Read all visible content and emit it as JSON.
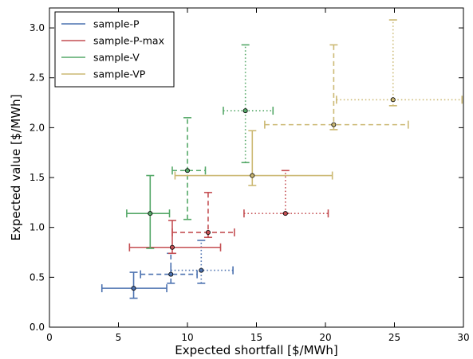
{
  "chart_data": {
    "type": "scatter",
    "xlabel": "Expected shortfall [$/MWh]",
    "ylabel": "Expected value [$/MWh]",
    "xlim": [
      0,
      30
    ],
    "ylim": [
      0.0,
      3.2
    ],
    "x_ticks": [
      "0",
      "5",
      "10",
      "15",
      "20",
      "25",
      "30"
    ],
    "y_ticks": [
      "0.0",
      "0.5",
      "1.0",
      "1.5",
      "2.0",
      "2.5",
      "3.0"
    ],
    "x_tick_values": [
      0,
      5,
      10,
      15,
      20,
      25,
      30
    ],
    "y_tick_values": [
      0.0,
      0.5,
      1.0,
      1.5,
      2.0,
      2.5,
      3.0
    ],
    "grid": false,
    "legend_position": "top-left",
    "series": [
      {
        "name": "sample-P",
        "color": "#4c72b0",
        "points": [
          {
            "x": 6.1,
            "y": 0.39,
            "xerr": [
              3.8,
              8.5
            ],
            "yerr": [
              0.29,
              0.55
            ],
            "style": "solid"
          },
          {
            "x": 8.8,
            "y": 0.53,
            "xerr": [
              6.6,
              10.7
            ],
            "yerr": [
              0.44,
              0.74
            ],
            "style": "dashed"
          },
          {
            "x": 11.0,
            "y": 0.57,
            "xerr": [
              8.8,
              13.3
            ],
            "yerr": [
              0.44,
              0.87
            ],
            "style": "dotted"
          }
        ]
      },
      {
        "name": "sample-P-max",
        "color": "#c44e52",
        "points": [
          {
            "x": 8.9,
            "y": 0.8,
            "xerr": [
              5.8,
              12.4
            ],
            "yerr": [
              0.74,
              1.07
            ],
            "style": "solid"
          },
          {
            "x": 11.5,
            "y": 0.95,
            "xerr": [
              8.9,
              13.4
            ],
            "yerr": [
              0.9,
              1.35
            ],
            "style": "dashed"
          },
          {
            "x": 17.1,
            "y": 1.14,
            "xerr": [
              14.1,
              20.2
            ],
            "yerr": [
              1.14,
              1.57
            ],
            "style": "dotted"
          }
        ]
      },
      {
        "name": "sample-V",
        "color": "#55a868",
        "points": [
          {
            "x": 7.3,
            "y": 1.14,
            "xerr": [
              5.6,
              8.7
            ],
            "yerr": [
              0.79,
              1.52
            ],
            "style": "solid"
          },
          {
            "x": 10.0,
            "y": 1.57,
            "xerr": [
              8.9,
              11.3
            ],
            "yerr": [
              1.08,
              2.1
            ],
            "style": "dashed"
          },
          {
            "x": 14.2,
            "y": 2.17,
            "xerr": [
              12.6,
              16.2
            ],
            "yerr": [
              1.65,
              2.83
            ],
            "style": "dotted"
          }
        ]
      },
      {
        "name": "sample-VP",
        "color": "#ccb974",
        "points": [
          {
            "x": 14.7,
            "y": 1.52,
            "xerr": [
              9.1,
              20.5
            ],
            "yerr": [
              1.42,
              1.97
            ],
            "style": "solid"
          },
          {
            "x": 20.6,
            "y": 2.03,
            "xerr": [
              15.6,
              26.0
            ],
            "yerr": [
              1.98,
              2.83
            ],
            "style": "dashed"
          },
          {
            "x": 24.9,
            "y": 2.28,
            "xerr": [
              20.8,
              29.9
            ],
            "yerr": [
              2.22,
              3.08
            ],
            "style": "dotted"
          }
        ]
      }
    ]
  }
}
